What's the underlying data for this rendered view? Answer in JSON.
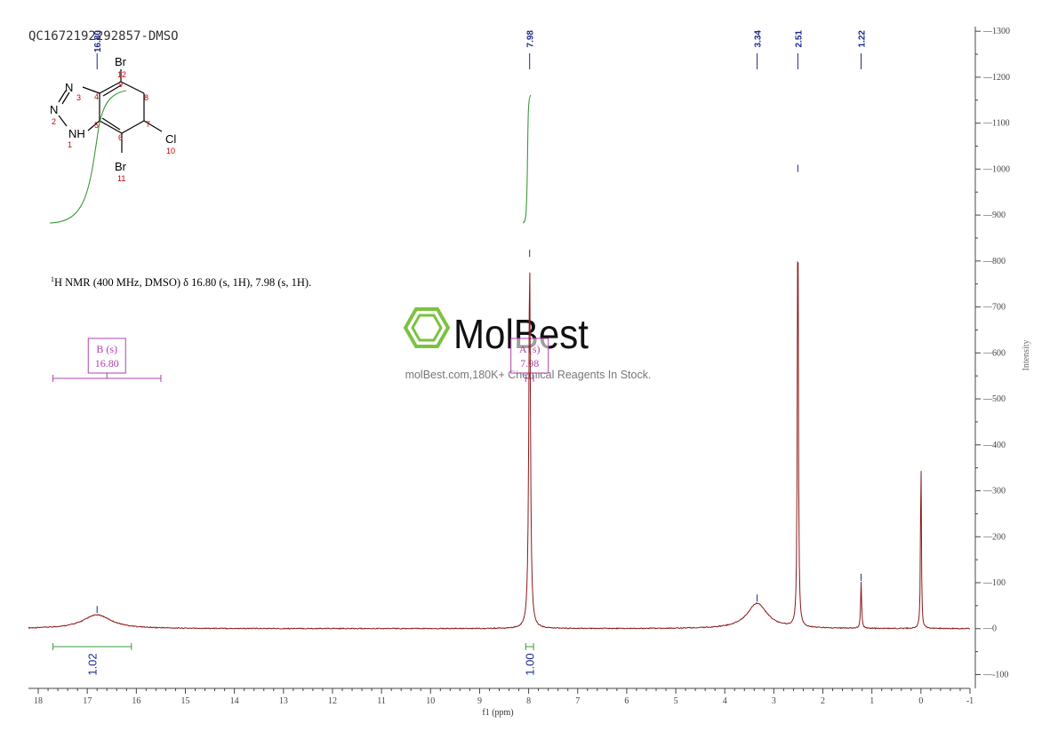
{
  "chart_data": {
    "type": "line",
    "title": "QC1672192292857-DMSO",
    "xlabel": "f1 (ppm)",
    "ylabel": "Intensity",
    "xlim": [
      18.2,
      -1.0
    ],
    "ylim": [
      -130,
      1310
    ],
    "x_ticks": [
      "18",
      "17",
      "16",
      "15",
      "14",
      "13",
      "12",
      "11",
      "10",
      "9",
      "8",
      "7",
      "6",
      "5",
      "4",
      "3",
      "2",
      "1",
      "0",
      "-1"
    ],
    "y_ticks": [
      "1300",
      "1200",
      "1100",
      "1000",
      "900",
      "800",
      "700",
      "600",
      "500",
      "400",
      "300",
      "200",
      "100",
      "0",
      "-100"
    ],
    "spectrum_color": "#8b1a1a",
    "integral_color": "#3a9a3a",
    "multiplet_color": "#b040b0",
    "peak_label_color": "#1a2a8a",
    "peaks": [
      {
        "ppm": 16.8,
        "height": 30,
        "width": 0.35,
        "label": "16.80"
      },
      {
        "ppm": 7.98,
        "height": 805,
        "width": 0.02,
        "label": "7.98"
      },
      {
        "ppm": 3.34,
        "height": 55,
        "width": 0.25,
        "label": "3.34"
      },
      {
        "ppm": 2.51,
        "height": 990,
        "width": 0.012,
        "label": "2.51"
      },
      {
        "ppm": 1.22,
        "height": 100,
        "width": 0.012,
        "label": "1.22"
      },
      {
        "ppm": 0.0,
        "height": 397,
        "width": 0.01,
        "label": ""
      }
    ],
    "top_peak_labels": [
      "16.80",
      "7.98",
      "3.34",
      "2.51",
      "1.22"
    ],
    "integrals": [
      {
        "from": 17.7,
        "to": 16.1,
        "value": "1.02"
      },
      {
        "from": 8.06,
        "to": 7.9,
        "value": "1.00"
      }
    ],
    "multiplets": [
      {
        "name": "B (s)",
        "shift": "16.80",
        "from": 17.7,
        "to": 15.5
      },
      {
        "name": "A (s)",
        "shift": "7.98",
        "from": 8.06,
        "to": 7.9
      }
    ],
    "annotation": "H NMR (400 MHz, DMSO) δ 16.80 (s, 1H), 7.98 (s, 1H).",
    "annotation_superscript": "1"
  },
  "watermark": {
    "brand": "MolBest",
    "tagline": "molBest.com,180K+ Chemical Reagents In Stock.",
    "color": "#7cc242"
  },
  "structure": {
    "atoms": [
      {
        "symbol": "Br",
        "number": "12"
      },
      {
        "symbol": "",
        "number": "9"
      },
      {
        "symbol": "",
        "number": "8"
      },
      {
        "symbol": "N",
        "number": "3"
      },
      {
        "symbol": "",
        "number": "4"
      },
      {
        "symbol": "N",
        "number": "2"
      },
      {
        "symbol": "",
        "number": "5"
      },
      {
        "symbol": "",
        "number": "7"
      },
      {
        "symbol": "NH",
        "number": "1"
      },
      {
        "symbol": "",
        "number": "6"
      },
      {
        "symbol": "Cl",
        "number": "10"
      },
      {
        "symbol": "Br",
        "number": "11"
      }
    ]
  }
}
